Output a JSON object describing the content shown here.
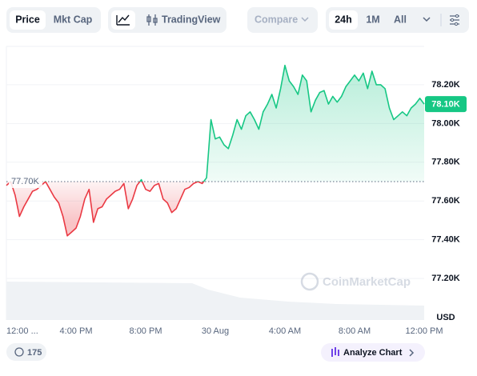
{
  "toolbar": {
    "price": "Price",
    "mkt_cap": "Mkt Cap",
    "tradingview": "TradingView",
    "compare": "Compare",
    "range_24h": "24h",
    "range_1m": "1M",
    "range_all": "All"
  },
  "footer": {
    "badge": "175",
    "analyze": "Analyze Chart"
  },
  "watermark": "CoinMarketCap",
  "chart_data": {
    "type": "line",
    "x": [
      0,
      0.25,
      0.5,
      0.75,
      1,
      1.25,
      1.5,
      1.75,
      2,
      2.25,
      2.5,
      2.75,
      3,
      3.25,
      3.5,
      3.75,
      4,
      4.25,
      4.5,
      4.75,
      5,
      5.25,
      5.5,
      5.75,
      6,
      6.25,
      6.5,
      6.75,
      7,
      7.25,
      7.5,
      7.75,
      8,
      8.25,
      8.5,
      8.75,
      9,
      9.25,
      9.5,
      9.75,
      10,
      10.25,
      10.5,
      10.75,
      11,
      11.25,
      11.5,
      11.75,
      12,
      12.25,
      12.5,
      12.75,
      13,
      13.25,
      13.5,
      13.75,
      14,
      14.25,
      14.5,
      14.75,
      15,
      15.25,
      15.5,
      15.75,
      16,
      16.25,
      16.5,
      16.75,
      17,
      17.25,
      17.5,
      17.75,
      18,
      18.25,
      18.5,
      18.75,
      19,
      19.25,
      19.5,
      19.75,
      20,
      20.25,
      20.5,
      20.75,
      21,
      21.25,
      21.5,
      21.75,
      22,
      22.25,
      22.5,
      22.75,
      23,
      23.25,
      23.5,
      23.75,
      24
    ],
    "values": [
      77.68,
      77.7,
      77.63,
      77.52,
      77.57,
      77.61,
      77.65,
      77.66,
      77.68,
      77.7,
      77.66,
      77.62,
      77.59,
      77.52,
      77.42,
      77.44,
      77.46,
      77.52,
      77.61,
      77.66,
      77.49,
      77.56,
      77.57,
      77.61,
      77.63,
      77.65,
      77.66,
      77.69,
      77.56,
      77.61,
      77.68,
      77.71,
      77.66,
      77.65,
      77.68,
      77.69,
      77.61,
      77.59,
      77.54,
      77.56,
      77.61,
      77.66,
      77.67,
      77.69,
      77.7,
      77.69,
      77.72,
      78.02,
      77.92,
      77.93,
      77.89,
      77.87,
      77.94,
      78.02,
      77.97,
      78.04,
      78.06,
      78.02,
      77.97,
      78.06,
      78.1,
      78.15,
      78.08,
      78.18,
      78.3,
      78.22,
      78.19,
      78.15,
      78.25,
      78.22,
      78.06,
      78.12,
      78.16,
      78.17,
      78.1,
      78.14,
      78.11,
      78.14,
      78.19,
      78.22,
      78.25,
      78.22,
      78.26,
      78.18,
      78.27,
      78.2,
      78.2,
      78.18,
      78.08,
      78.02,
      78.04,
      78.06,
      78.04,
      78.08,
      78.1,
      78.13,
      78.1
    ],
    "color_up": "#16c784",
    "color_down": "#ea3943",
    "baseline": {
      "value": 77.7,
      "label": "77.70K"
    },
    "current": {
      "value": 78.1,
      "label": "78.10K"
    },
    "xlim": [
      0,
      24
    ],
    "xticks": [
      {
        "value": 0,
        "label": "12:00 ..."
      },
      {
        "value": 4,
        "label": "4:00 PM"
      },
      {
        "value": 8,
        "label": "8:00 PM"
      },
      {
        "value": 12,
        "label": "30 Aug"
      },
      {
        "value": 16,
        "label": "4:00 AM"
      },
      {
        "value": 20,
        "label": "8:00 AM"
      },
      {
        "value": 24,
        "label": "12:00 PM"
      }
    ],
    "ylim": [
      77.0,
      78.4
    ],
    "yticks": [
      {
        "value": 77.2,
        "label": "77.20K"
      },
      {
        "value": 77.4,
        "label": "77.40K"
      },
      {
        "value": 77.6,
        "label": "77.60K"
      },
      {
        "value": 77.8,
        "label": "77.80K"
      },
      {
        "value": 78.0,
        "label": "78.00K"
      },
      {
        "value": 78.2,
        "label": "78.20K"
      }
    ],
    "y_unit": "USD",
    "grid": true
  }
}
